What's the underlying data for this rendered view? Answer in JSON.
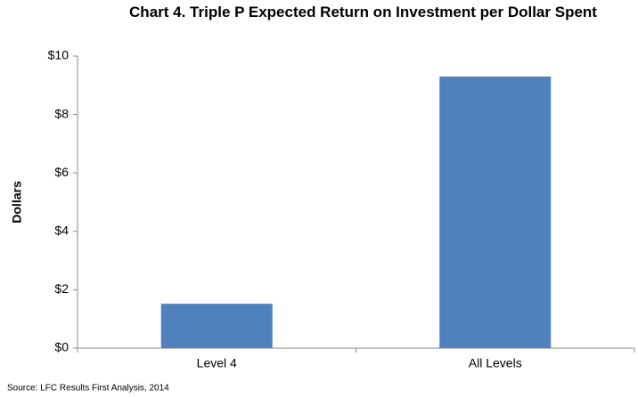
{
  "chart_data": {
    "type": "bar",
    "title": "Chart 4. Triple P Expected Return on Investment per Dollar Spent",
    "y_label": "Dollars",
    "source": "Source: LFC Results First Analysis, 2014",
    "categories": [
      "Level 4",
      "All Levels"
    ],
    "values": [
      1.52,
      9.3
    ],
    "color": "#4f81bd",
    "ylim": [
      0,
      10
    ],
    "yticks": [
      {
        "value": 0,
        "label": "$0"
      },
      {
        "value": 2,
        "label": "$2"
      },
      {
        "value": 4,
        "label": "$4"
      },
      {
        "value": 6,
        "label": "$6"
      },
      {
        "value": 8,
        "label": "$8"
      },
      {
        "value": 10,
        "label": "$10"
      }
    ],
    "grid": false
  }
}
